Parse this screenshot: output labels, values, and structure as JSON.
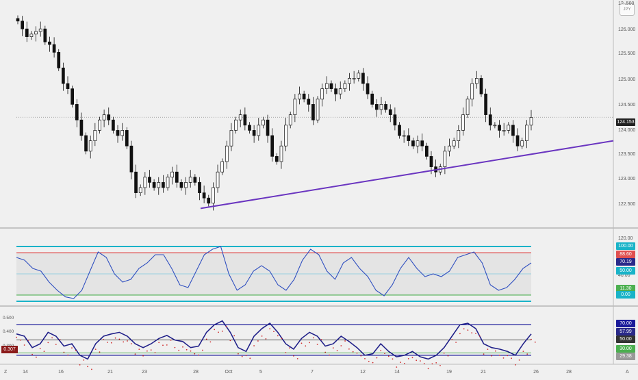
{
  "badge": "JPY",
  "corner_labels": {
    "left": "Z",
    "right": "A"
  },
  "price_axis": {
    "labels": [
      "126.000",
      "125.500",
      "125.000",
      "124.500",
      "124.000",
      "123.500",
      "123.000",
      "122.500"
    ],
    "top_label": "1?..500"
  },
  "current_price": "124.153",
  "x_axis": {
    "labels": [
      "14",
      "16",
      "21",
      "23",
      "28",
      "Oct",
      "5",
      "7",
      "12",
      "14",
      "19",
      "21",
      "26",
      "28"
    ]
  },
  "pane2": {
    "labels": [
      "120.00",
      "40.00"
    ],
    "tags": {
      "top": "100.00",
      "upper": "88.60",
      "value": "70.19",
      "mid": "50.00",
      "lower": "11.30",
      "bottom": "0.00"
    }
  },
  "pane3": {
    "left_labels": [
      "0.500",
      "0.400",
      "0.300"
    ],
    "left_tag": "0.307",
    "tags": {
      "upper": "70.00",
      "value": "57.99",
      "mid": "50.00",
      "lower": "30.00",
      "bottom": "29.38"
    }
  },
  "colors": {
    "trendline": "#6a35c0",
    "osc_line": "#3050c0",
    "cyan": "#19b3c8",
    "red": "#e05050",
    "green": "#4caf50",
    "navy": "#1a1a9a",
    "dots": "#d03030"
  },
  "chart_data": [
    {
      "type": "candlestick",
      "ylim": [
        122.3,
        126.3
      ],
      "x_ticks": [
        "14",
        "16",
        "21",
        "23",
        "28",
        "Oct",
        "5",
        "7",
        "12",
        "14",
        "19",
        "21",
        "26",
        "28"
      ],
      "close": [
        126.0,
        125.85,
        125.7,
        125.75,
        125.8,
        125.85,
        125.6,
        125.55,
        125.4,
        125.1,
        124.8,
        124.7,
        124.4,
        124.1,
        123.8,
        123.5,
        123.7,
        123.9,
        124.1,
        124.2,
        124.1,
        123.9,
        123.8,
        123.9,
        123.6,
        123.1,
        122.7,
        122.8,
        123.0,
        122.9,
        122.8,
        122.9,
        122.8,
        123.0,
        123.1,
        122.9,
        122.8,
        122.9,
        123.0,
        122.9,
        122.7,
        122.6,
        122.5,
        122.8,
        123.1,
        123.3,
        123.6,
        123.9,
        124.1,
        124.2,
        124.0,
        123.9,
        123.8,
        124.0,
        124.1,
        123.8,
        123.4,
        123.3,
        123.6,
        124.0,
        124.2,
        124.5,
        124.6,
        124.5,
        124.4,
        124.1,
        124.5,
        124.7,
        124.8,
        124.7,
        124.6,
        124.7,
        124.8,
        124.9,
        124.9,
        125.0,
        124.8,
        124.6,
        124.4,
        124.3,
        124.4,
        124.3,
        124.2,
        124.0,
        123.8,
        123.8,
        123.7,
        123.6,
        123.7,
        123.6,
        123.4,
        123.2,
        123.1,
        123.2,
        123.5,
        123.6,
        123.7,
        123.9,
        124.2,
        124.5,
        124.8,
        124.9,
        124.6,
        124.2,
        124.0,
        124.0,
        123.9,
        123.9,
        124.0,
        123.8,
        123.6,
        123.7,
        124.0,
        124.15
      ],
      "current": 124.153,
      "trendline": [
        {
          "x": "28",
          "y": 122.4
        },
        {
          "x": "end",
          "y": 123.7
        }
      ]
    },
    {
      "type": "line",
      "name": "",
      "ylim": [
        0,
        120
      ],
      "levels": [
        100,
        88.6,
        50,
        11.3,
        0
      ],
      "last": 70.19,
      "values": [
        80,
        75,
        60,
        55,
        35,
        20,
        8,
        5,
        20,
        55,
        90,
        80,
        50,
        35,
        40,
        60,
        70,
        85,
        85,
        60,
        30,
        25,
        55,
        85,
        95,
        100,
        50,
        20,
        30,
        55,
        65,
        55,
        30,
        20,
        40,
        75,
        95,
        85,
        55,
        40,
        70,
        80,
        60,
        45,
        20,
        10,
        30,
        60,
        80,
        60,
        45,
        50,
        45,
        55,
        80,
        85,
        90,
        70,
        30,
        20,
        25,
        40,
        60,
        70
      ]
    },
    {
      "type": "line",
      "name": "",
      "ylim": [
        20,
        90
      ],
      "levels": [
        70,
        50,
        30
      ],
      "last": 57.99,
      "values": [
        58,
        55,
        40,
        45,
        60,
        55,
        42,
        45,
        30,
        25,
        45,
        55,
        58,
        60,
        55,
        45,
        40,
        45,
        52,
        56,
        50,
        48,
        40,
        42,
        60,
        70,
        75,
        60,
        40,
        35,
        55,
        65,
        72,
        60,
        45,
        38,
        52,
        60,
        55,
        42,
        45,
        55,
        48,
        40,
        30,
        32,
        45,
        35,
        28,
        30,
        35,
        28,
        25,
        30,
        40,
        55,
        70,
        72,
        65,
        45,
        40,
        38,
        35,
        30,
        45,
        58
      ],
      "secondary_left_axis": {
        "range": [
          0.2,
          0.5
        ],
        "last": 0.307
      }
    }
  ]
}
